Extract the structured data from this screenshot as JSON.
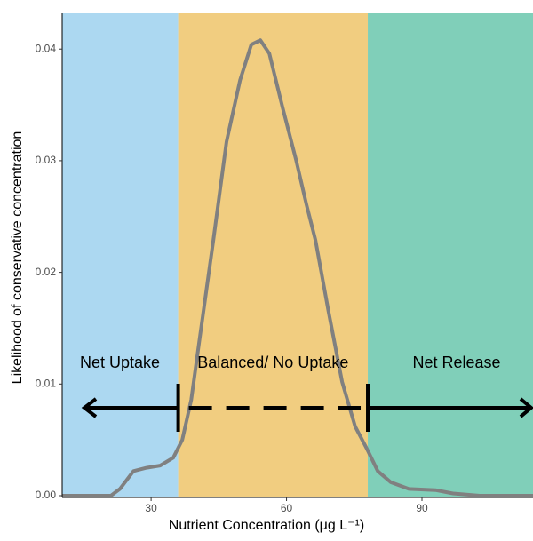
{
  "chart_data": {
    "type": "line",
    "x_label": "Nutrient Concentration (μg L⁻¹)",
    "y_label": "Likelihood of conservative concentration",
    "xlim": [
      10.3,
      114.6
    ],
    "xticks": [
      30,
      60,
      90
    ],
    "ylim": [
      -0.00016,
      0.0432
    ],
    "yticks": [
      {
        "value": 0,
        "label": "0.00"
      },
      {
        "value": 0.01,
        "label": "0.01"
      },
      {
        "value": 0.02,
        "label": "0.02"
      },
      {
        "value": 0.03,
        "label": "0.03"
      },
      {
        "value": 0.04,
        "label": "0.04"
      }
    ],
    "boundaries": [
      36,
      78
    ],
    "regions": [
      {
        "label": "Net Uptake",
        "color": "#acd8f1"
      },
      {
        "label": "Balanced/ No Uptake",
        "color": "#f1cd80"
      },
      {
        "label": "Net Release",
        "color": "#80cfb9"
      }
    ],
    "series": [
      {
        "color": "#808080",
        "x": [
          10.3,
          21.1,
          23.1,
          26.1,
          29,
          32,
          34.9,
          36.9,
          38.9,
          40.8,
          43.8,
          46.7,
          49.7,
          52.2,
          54.2,
          56.2,
          59.1,
          62.1,
          64.4,
          66.4,
          69.3,
          72.3,
          75.2,
          77.8,
          80.2,
          83.1,
          87.1,
          93,
          96.9,
          102.8,
          114.6
        ],
        "values": [
          0,
          0,
          0.0006,
          0.0022,
          0.0025,
          0.0027,
          0.0034,
          0.005,
          0.0086,
          0.0142,
          0.0229,
          0.0317,
          0.0372,
          0.0404,
          0.0408,
          0.0396,
          0.0348,
          0.0301,
          0.0261,
          0.0229,
          0.0165,
          0.0102,
          0.0062,
          0.0042,
          0.0022,
          0.0012,
          0.0006,
          0.0005,
          0.0002,
          0,
          0
        ]
      }
    ]
  }
}
